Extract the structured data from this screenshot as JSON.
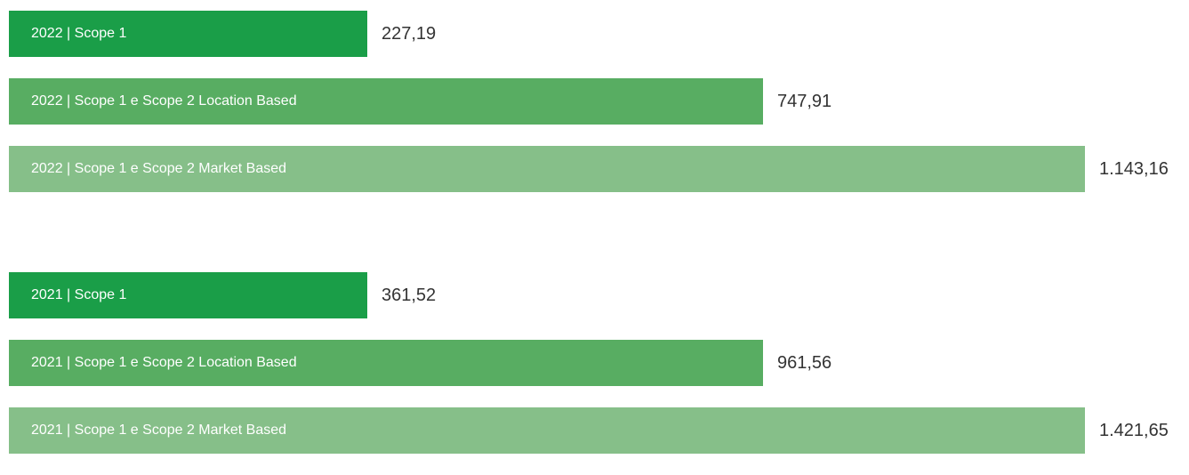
{
  "groups": [
    {
      "rows": [
        {
          "label": "2022  |  Scope 1",
          "value": "227,19"
        },
        {
          "label": "2022  |  Scope 1 e Scope 2 Location Based",
          "value": "747,91"
        },
        {
          "label": "2022  |  Scope 1 e Scope 2 Market Based",
          "value": "1.143,16"
        }
      ]
    },
    {
      "rows": [
        {
          "label": "2021  |  Scope 1",
          "value": "361,52"
        },
        {
          "label": "2021  |  Scope 1 e Scope 2 Location Based",
          "value": "961,56"
        },
        {
          "label": "2021  |  Scope 1 e Scope 2 Market Based",
          "value": "1.421,65"
        }
      ]
    }
  ]
}
